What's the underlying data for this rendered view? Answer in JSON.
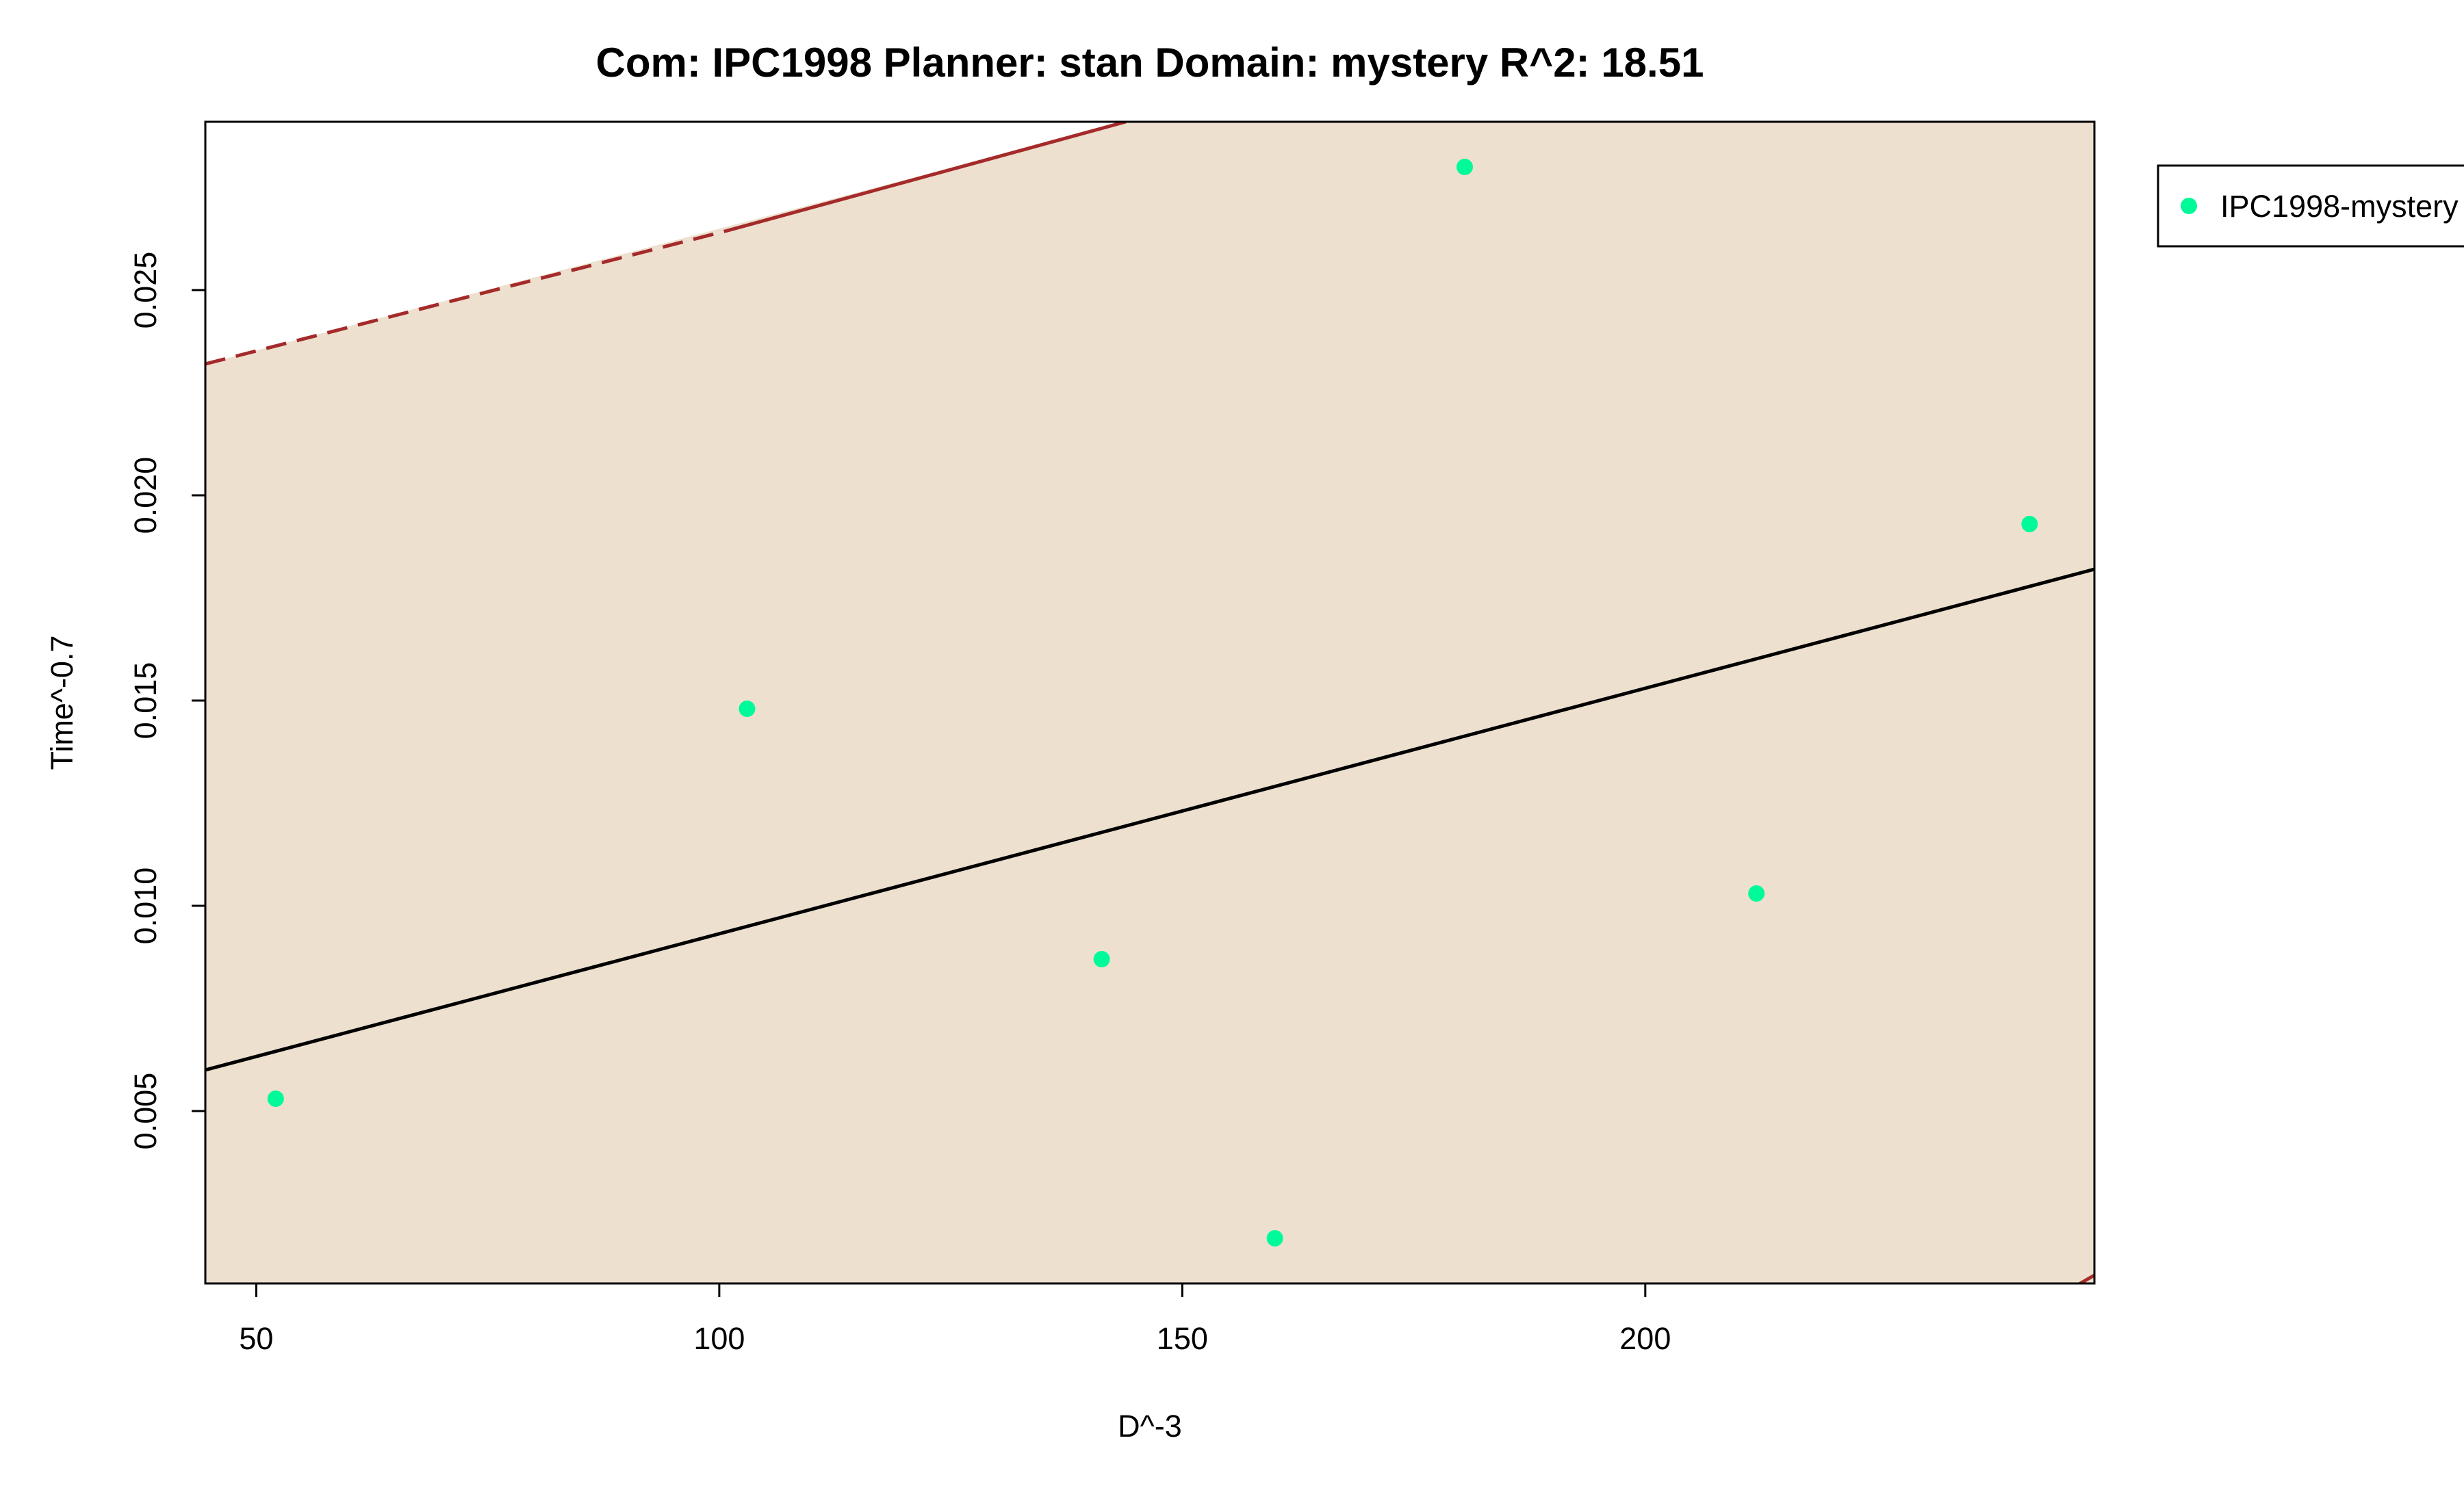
{
  "chart_data": {
    "type": "scatter",
    "title": "Com: IPC1998 Planner: stan Domain: mystery R^2: 18.51",
    "xlabel": "D^-3",
    "ylabel": "Time^-0.7",
    "xlim": [
      44.5,
      248.5
    ],
    "ylim": [
      0.0008,
      0.0291
    ],
    "x_ticks": [
      50,
      100,
      150,
      200
    ],
    "x_tick_labels": [
      "50",
      "100",
      "150",
      "200"
    ],
    "y_ticks": [
      0.005,
      0.01,
      0.015,
      0.02,
      0.025
    ],
    "y_tick_labels": [
      "0.005",
      "0.010",
      "0.015",
      "0.020",
      "0.025"
    ],
    "grid": false,
    "legend_position": "top-right, outside plot area",
    "series": [
      {
        "name": "IPC1998-mystery",
        "color": "#00fa9a",
        "points": [
          {
            "x": 52.1,
            "y": 0.0053
          },
          {
            "x": 103.0,
            "y": 0.0148
          },
          {
            "x": 141.3,
            "y": 0.0087
          },
          {
            "x": 160.0,
            "y": 0.0019
          },
          {
            "x": 180.5,
            "y": 0.028
          },
          {
            "x": 212.0,
            "y": 0.0103
          },
          {
            "x": 241.5,
            "y": 0.0193
          }
        ]
      }
    ],
    "fit_line": {
      "color": "#000000",
      "points": [
        {
          "x": 44.5,
          "y": 0.006
        },
        {
          "x": 248.5,
          "y": 0.0182
        }
      ]
    },
    "upper_bound": {
      "color": "#a52a2a",
      "dashed_segment": [
        {
          "x": 44.5,
          "y": 0.0232
        },
        {
          "x": 100.9,
          "y": 0.02645
        }
      ],
      "solid_segment": [
        {
          "x": 100.9,
          "y": 0.02645
        },
        {
          "x": 143.9,
          "y": 0.0291
        }
      ]
    },
    "lower_bound": {
      "color": "#a52a2a",
      "points": [
        {
          "x": 243.5,
          "y": 0.00035
        },
        {
          "x": 248.5,
          "y": 0.001
        }
      ]
    },
    "band_color": "#ede0cf"
  },
  "legend": {
    "label": "IPC1998-mystery"
  }
}
